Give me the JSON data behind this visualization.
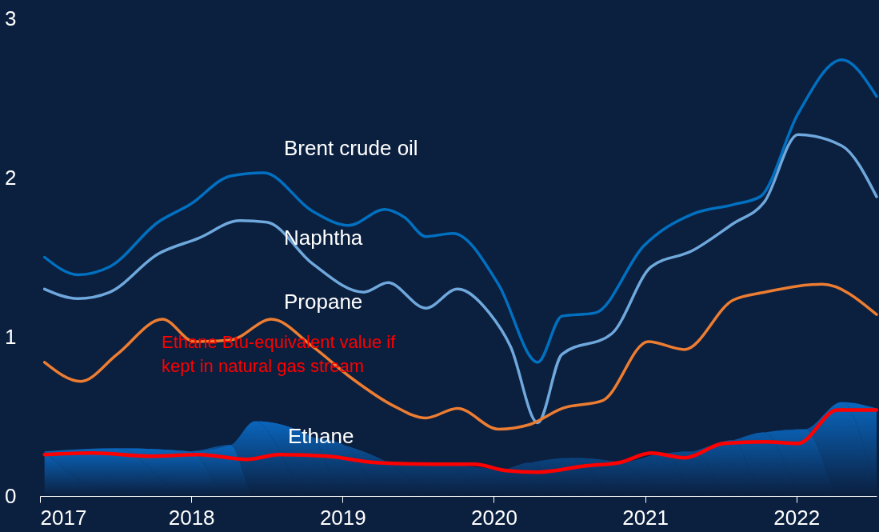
{
  "chart_data": {
    "type": "line",
    "xlim": [
      2017,
      2022.53
    ],
    "ylim": [
      0,
      3
    ],
    "xticks": [
      2017,
      2018,
      2019,
      2020,
      2021,
      2022
    ],
    "yticks": [
      0,
      1,
      2,
      3
    ],
    "grid": false,
    "marker": "none",
    "line_style": "solid",
    "series": [
      {
        "type": "area",
        "color": "#0a66bd",
        "x": [
          2017.03,
          2017.51,
          2017.99,
          2018.26,
          2018.42,
          2018.8,
          2019.01,
          2019.28,
          2019.65,
          2020.03,
          2020.24,
          2020.51,
          2020.83,
          2021.15,
          2021.31,
          2021.58,
          2021.79,
          2022.06,
          2022.3,
          2022.53
        ],
        "values": [
          0.28,
          0.3,
          0.28,
          0.32,
          0.47,
          0.37,
          0.32,
          0.22,
          0.2,
          0.16,
          0.21,
          0.24,
          0.21,
          0.27,
          0.28,
          0.35,
          0.4,
          0.42,
          0.59,
          0.55
        ]
      },
      {
        "color": "#0070c0",
        "x": [
          2017.03,
          2017.25,
          2017.46,
          2017.78,
          2017.99,
          2018.26,
          2018.48,
          2018.8,
          2019.04,
          2019.28,
          2019.41,
          2019.55,
          2019.73,
          2020.03,
          2020.29,
          2020.45,
          2020.67,
          2020.99,
          2021.31,
          2021.58,
          2021.76,
          2022.01,
          2022.3,
          2022.53
        ],
        "values": [
          1.5,
          1.39,
          1.44,
          1.72,
          1.83,
          2.01,
          2.03,
          1.79,
          1.7,
          1.8,
          1.75,
          1.63,
          1.65,
          1.33,
          0.84,
          1.13,
          1.15,
          1.57,
          1.77,
          1.83,
          1.88,
          2.4,
          2.74,
          2.51
        ]
      },
      {
        "color": "#6fa8dc",
        "x": [
          2017.03,
          2017.25,
          2017.46,
          2017.78,
          2018.05,
          2018.32,
          2018.5,
          2018.8,
          2019.14,
          2019.3,
          2019.55,
          2019.76,
          2019.97,
          2020.11,
          2020.29,
          2020.45,
          2020.78,
          2021.04,
          2021.31,
          2021.58,
          2021.79,
          2022.01,
          2022.3,
          2022.53
        ],
        "values": [
          1.3,
          1.24,
          1.28,
          1.52,
          1.62,
          1.73,
          1.72,
          1.46,
          1.28,
          1.34,
          1.18,
          1.3,
          1.15,
          0.94,
          0.46,
          0.89,
          1.02,
          1.44,
          1.54,
          1.71,
          1.85,
          2.27,
          2.2,
          1.88
        ]
      },
      {
        "color": "#ed7d31",
        "x": [
          2017.03,
          2017.27,
          2017.51,
          2017.81,
          2018.02,
          2018.26,
          2018.53,
          2018.8,
          2019.06,
          2019.33,
          2019.55,
          2019.76,
          2020.03,
          2020.24,
          2020.45,
          2020.72,
          2021.02,
          2021.26,
          2021.58,
          2021.79,
          2022.17,
          2022.53
        ],
        "values": [
          0.84,
          0.72,
          0.89,
          1.11,
          0.97,
          0.98,
          1.11,
          0.94,
          0.74,
          0.57,
          0.49,
          0.55,
          0.42,
          0.45,
          0.55,
          0.6,
          0.97,
          0.92,
          1.23,
          1.28,
          1.33,
          1.14
        ]
      },
      {
        "color": "#ff0000",
        "x": [
          2017.03,
          2017.35,
          2017.73,
          2018.05,
          2018.37,
          2018.58,
          2018.9,
          2019.22,
          2019.6,
          2019.87,
          2020.08,
          2020.29,
          2020.61,
          2020.83,
          2021.04,
          2021.26,
          2021.52,
          2021.79,
          2022.01,
          2022.27,
          2022.53
        ],
        "values": [
          0.26,
          0.27,
          0.25,
          0.26,
          0.23,
          0.26,
          0.25,
          0.21,
          0.2,
          0.2,
          0.16,
          0.15,
          0.19,
          0.21,
          0.27,
          0.24,
          0.33,
          0.34,
          0.33,
          0.54,
          0.54
        ]
      }
    ],
    "annotations": [
      "Brent crude oil",
      "Naphtha",
      "Propane",
      "Ethane",
      "Ethane Btu-equivalent value if\nkept in natural gas stream"
    ]
  }
}
